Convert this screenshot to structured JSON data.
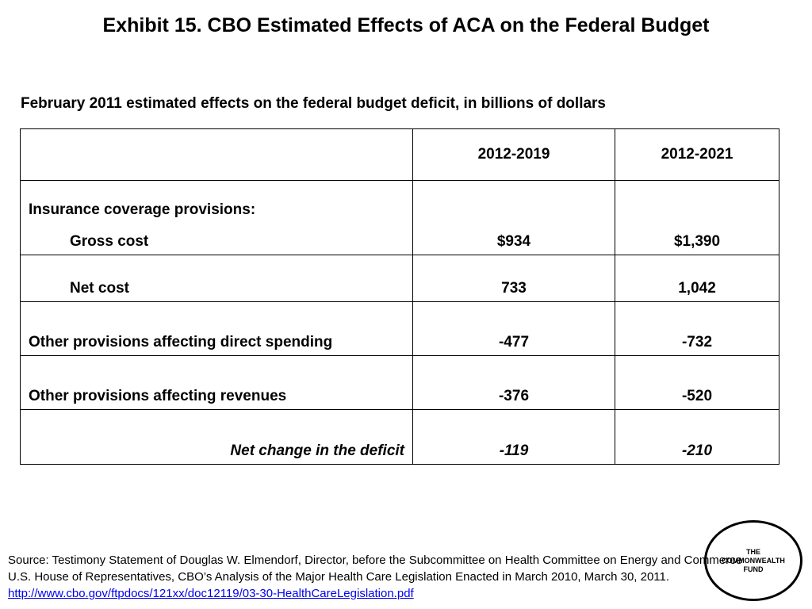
{
  "title": "Exhibit 15. CBO Estimated Effects of ACA on the Federal Budget",
  "subtitle": "February 2011 estimated effects on the federal budget deficit, in billions of dollars",
  "table": {
    "columns": [
      "",
      "2012-2019",
      "2012-2021"
    ],
    "rows": [
      {
        "section": "Insurance coverage provisions:",
        "label": "Gross cost",
        "v1": "$934",
        "v2": "$1,390"
      },
      {
        "label": "Net cost",
        "v1": "733",
        "v2": "1,042"
      },
      {
        "label": "Other provisions affecting direct spending",
        "v1": "-477",
        "v2": "-732"
      },
      {
        "label": "Other provisions affecting revenues",
        "v1": "-376",
        "v2": "-520"
      },
      {
        "label": "Net change in the deficit",
        "v1": "-119",
        "v2": "-210"
      }
    ]
  },
  "source": {
    "text": "Source: Testimony Statement of Douglas W. Elmendorf, Director, before the Subcommittee on Health Committee on Energy and Commerce U.S. House of Representatives, CBO’s Analysis of the Major Health Care Legislation Enacted in March 2010, March 30, 2011.",
    "link": "http://www.cbo.gov/ftpdocs/121xx/doc12119/03-30-HealthCareLegislation.pdf"
  },
  "logo": {
    "line1": "THE",
    "line2": "COMMONWEALTH",
    "line3": "FUND"
  }
}
